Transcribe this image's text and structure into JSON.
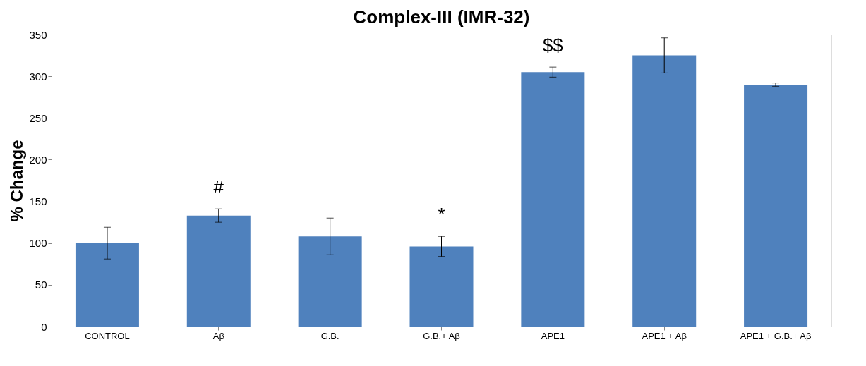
{
  "chart_data": {
    "type": "bar",
    "title": "Complex-III (IMR-32)",
    "ylabel": "% Change",
    "categories": [
      "CONTROL",
      "Aβ",
      "G.B.",
      "G.B.+ Aβ",
      "APE1",
      "APE1 + Aβ",
      "APE1 + G.B.+ Aβ"
    ],
    "values": [
      100,
      133,
      108,
      96,
      305,
      325,
      290
    ],
    "errors": [
      19,
      8,
      22,
      12,
      6,
      21,
      2
    ],
    "color": "#4f81bd",
    "ylim": [
      0,
      350
    ],
    "yticks": [
      0,
      50,
      100,
      150,
      200,
      250,
      300,
      350
    ],
    "grid": false,
    "annotations": [
      "#",
      "*",
      "$$"
    ]
  }
}
